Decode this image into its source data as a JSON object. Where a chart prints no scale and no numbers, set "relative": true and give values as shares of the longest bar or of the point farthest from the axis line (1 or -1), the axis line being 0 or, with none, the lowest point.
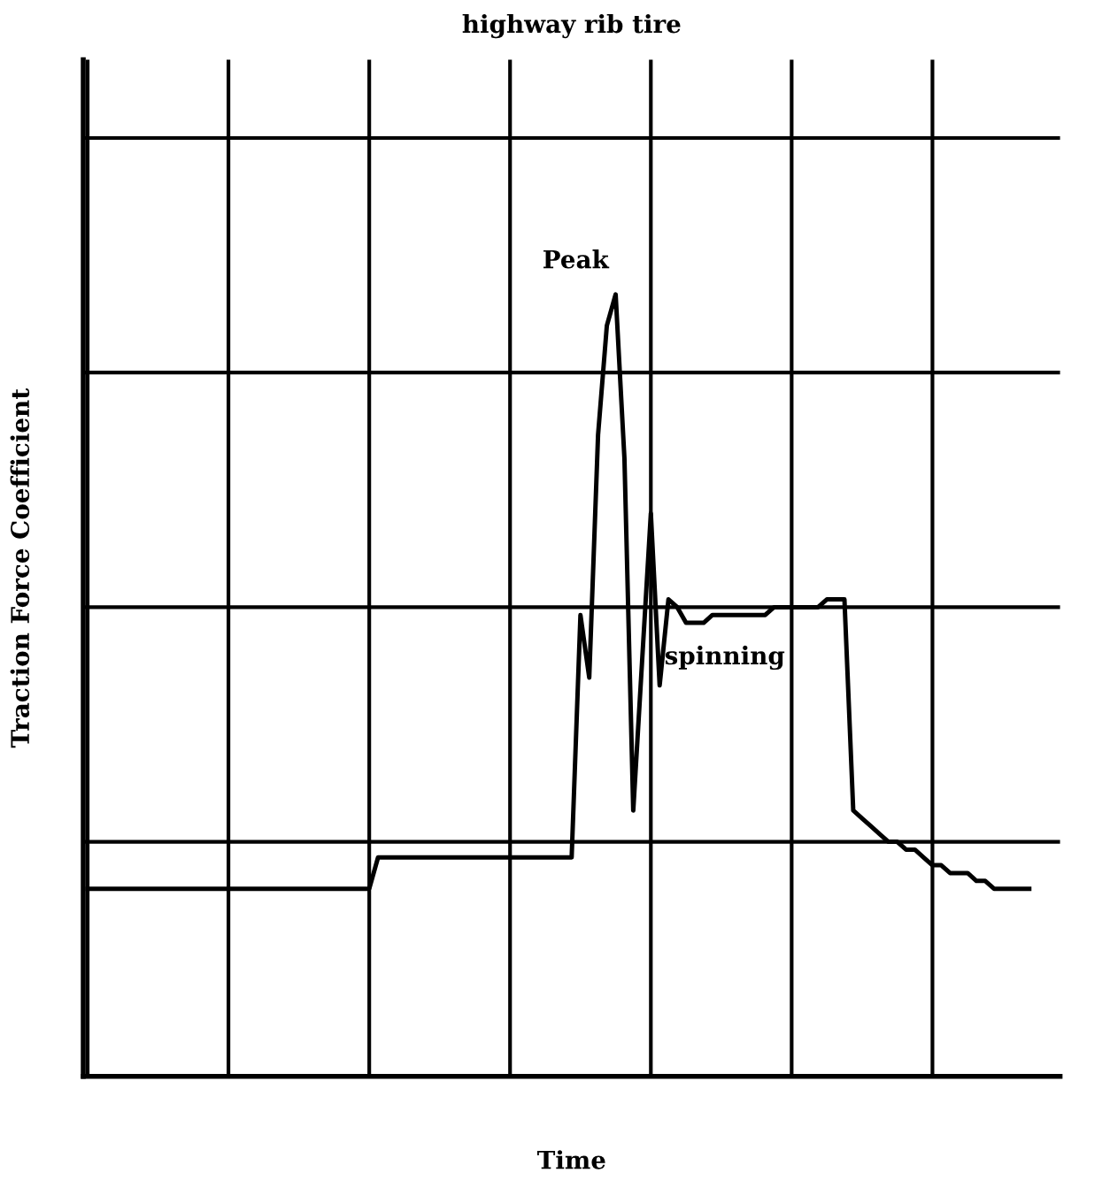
{
  "chart_data": {
    "type": "line",
    "relative": true,
    "title": "highway rib tire",
    "xlabel": "Time",
    "ylabel": "Traction Force Coefficient",
    "annotations": [
      "Peak",
      "spinning"
    ],
    "categories": [
      null,
      null,
      null,
      null,
      null,
      null,
      null,
      null,
      null,
      null,
      null,
      null,
      null,
      null,
      null,
      null,
      null,
      null,
      null,
      null,
      null,
      null,
      null,
      null,
      null,
      null,
      null,
      null,
      null,
      null,
      null,
      null,
      null,
      null,
      null,
      null,
      null,
      null,
      null,
      null,
      null,
      null,
      null,
      null,
      null,
      null,
      null,
      null,
      null,
      null,
      null,
      null,
      null,
      null,
      null,
      null,
      null,
      null,
      null,
      null,
      null,
      null,
      null,
      null,
      null,
      null,
      null,
      null,
      null,
      null,
      null,
      null,
      null,
      null,
      null,
      null,
      null,
      null,
      null,
      null,
      null,
      null,
      null,
      null,
      null,
      null,
      null,
      null,
      null,
      null,
      null,
      null,
      null,
      null,
      null,
      null,
      null,
      null,
      null,
      null,
      null,
      null,
      null,
      null,
      null,
      null,
      null,
      null
    ],
    "series": [
      {
        "color": "#000000",
        "values": [
          0.24,
          0.24,
          0.24,
          0.24,
          0.24,
          0.24,
          0.24,
          0.24,
          0.24,
          0.24,
          0.24,
          0.24,
          0.24,
          0.24,
          0.24,
          0.24,
          0.24,
          0.24,
          0.24,
          0.24,
          0.24,
          0.24,
          0.24,
          0.24,
          0.24,
          0.24,
          0.24,
          0.24,
          0.24,
          0.24,
          0.24,
          0.24,
          0.24,
          0.28,
          0.28,
          0.28,
          0.28,
          0.28,
          0.28,
          0.28,
          0.28,
          0.28,
          0.28,
          0.28,
          0.28,
          0.28,
          0.28,
          0.28,
          0.28,
          0.28,
          0.28,
          0.28,
          0.28,
          0.28,
          0.28,
          0.28,
          0.59,
          0.51,
          0.82,
          0.96,
          1.0,
          0.79,
          0.34,
          0.53,
          0.72,
          0.5,
          0.61,
          0.6,
          0.58,
          0.58,
          0.58,
          0.59,
          0.59,
          0.59,
          0.59,
          0.59,
          0.59,
          0.59,
          0.6,
          0.6,
          0.6,
          0.6,
          0.6,
          0.6,
          0.61,
          0.61,
          0.61,
          0.34,
          0.33,
          0.32,
          0.31,
          0.3,
          0.3,
          0.29,
          0.29,
          0.28,
          0.27,
          0.27,
          0.26,
          0.26,
          0.26,
          0.25,
          0.25,
          0.24,
          0.24,
          0.24,
          0.24,
          0.24
        ]
      }
    ],
    "grid": true,
    "legend": false,
    "tick_labels": false,
    "marker": "none",
    "line_style": "solid"
  }
}
